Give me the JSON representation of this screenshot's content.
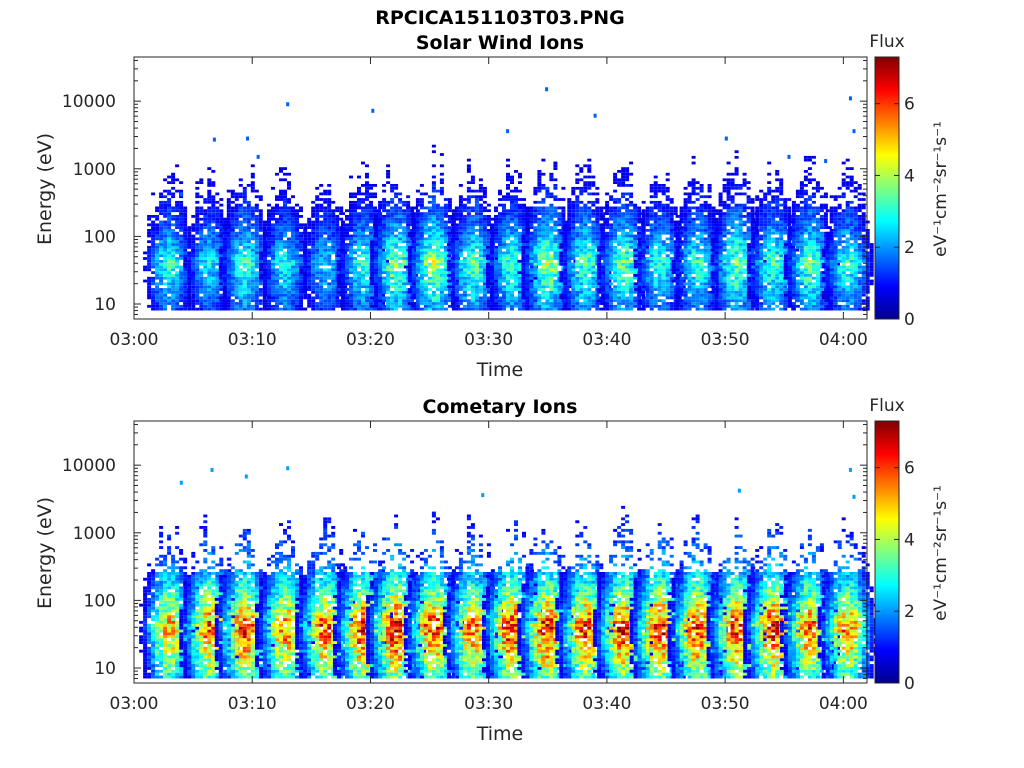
{
  "figure_title": "RPCICA151103T03.PNG",
  "colormap": [
    "#00008f",
    "#0000ff",
    "#007fff",
    "#00ffff",
    "#7fff7f",
    "#ffff00",
    "#ff7f00",
    "#ff0000",
    "#7f0000"
  ],
  "chart_data": [
    {
      "type": "heatmap",
      "title": "Solar Wind Ions",
      "xlabel": "Time",
      "ylabel": "Energy (eV)",
      "xlim": [
        "03:00",
        "04:02"
      ],
      "xticks": [
        "03:00",
        "03:10",
        "03:20",
        "03:30",
        "03:40",
        "03:50",
        "04:00"
      ],
      "yscale": "log",
      "ylim": [
        6,
        45000
      ],
      "yticks": [
        "10",
        "100",
        "1000",
        "10000"
      ],
      "grid": false,
      "colorbar": {
        "label": "Flux",
        "unit_label": "eV⁻¹cm⁻²sr⁻¹s⁻¹",
        "range": [
          0,
          7.3
        ],
        "ticks": [
          "0",
          "2",
          "4",
          "6"
        ]
      },
      "burst_times_min": [
        2.8,
        6.2,
        9.2,
        12.6,
        16.0,
        19.2,
        22.0,
        25.2,
        28.5,
        31.8,
        34.8,
        38.0,
        41.2,
        44.3,
        47.5,
        50.8,
        53.9,
        57.0,
        60.2
      ],
      "burst_peak_flux": [
        3.2,
        2.8,
        3.4,
        3.0,
        2.6,
        3.3,
        3.9,
        4.2,
        3.6,
        3.4,
        4.2,
        3.6,
        3.8,
        3.2,
        3.3,
        3.8,
        3.5,
        3.7,
        3.3
      ],
      "energy_range_eV": [
        8,
        2500
      ],
      "peak_energy_eV": 40,
      "scattered_points": [
        {
          "t_min": 4.0,
          "energy_eV": 420
        },
        {
          "t_min": 6.8,
          "energy_eV": 2700
        },
        {
          "t_min": 9.6,
          "energy_eV": 2800
        },
        {
          "t_min": 10.5,
          "energy_eV": 1500
        },
        {
          "t_min": 13.0,
          "energy_eV": 9000
        },
        {
          "t_min": 20.2,
          "energy_eV": 7200
        },
        {
          "t_min": 31.6,
          "energy_eV": 3600
        },
        {
          "t_min": 34.9,
          "energy_eV": 15000
        },
        {
          "t_min": 39.0,
          "energy_eV": 6100
        },
        {
          "t_min": 50.1,
          "energy_eV": 2800
        },
        {
          "t_min": 55.4,
          "energy_eV": 1500
        },
        {
          "t_min": 58.5,
          "energy_eV": 1300
        },
        {
          "t_min": 60.6,
          "energy_eV": 11000
        },
        {
          "t_min": 60.9,
          "energy_eV": 3600
        }
      ]
    },
    {
      "type": "heatmap",
      "title": "Cometary Ions",
      "xlabel": "Time",
      "ylabel": "Energy (eV)",
      "xlim": [
        "03:00",
        "04:02"
      ],
      "xticks": [
        "03:00",
        "03:10",
        "03:20",
        "03:30",
        "03:40",
        "03:50",
        "04:00"
      ],
      "yscale": "log",
      "ylim": [
        6,
        45000
      ],
      "yticks": [
        "10",
        "100",
        "1000",
        "10000"
      ],
      "grid": false,
      "colorbar": {
        "label": "Flux",
        "unit_label": "eV⁻¹cm⁻²sr⁻¹s⁻¹",
        "range": [
          0,
          7.3
        ],
        "ticks": [
          "0",
          "2",
          "4",
          "6"
        ]
      },
      "burst_times_min": [
        2.8,
        6.2,
        9.2,
        12.6,
        16.0,
        19.2,
        22.0,
        25.2,
        28.5,
        31.8,
        34.8,
        38.0,
        41.2,
        44.3,
        47.5,
        50.8,
        53.9,
        57.0,
        60.2
      ],
      "burst_peak_flux": [
        5.6,
        6.2,
        6.6,
        6.0,
        6.4,
        6.8,
        7.0,
        6.6,
        6.2,
        6.9,
        6.8,
        6.5,
        6.8,
        6.9,
        6.6,
        6.7,
        6.8,
        6.2,
        6.0
      ],
      "energy_range_eV": [
        7,
        2500
      ],
      "peak_energy_eV": 40,
      "scattered_points": [
        {
          "t_min": 4.0,
          "energy_eV": 5500
        },
        {
          "t_min": 6.6,
          "energy_eV": 8500
        },
        {
          "t_min": 9.5,
          "energy_eV": 6800
        },
        {
          "t_min": 13.0,
          "energy_eV": 9000
        },
        {
          "t_min": 29.5,
          "energy_eV": 3600
        },
        {
          "t_min": 51.2,
          "energy_eV": 4200
        },
        {
          "t_min": 60.6,
          "energy_eV": 8500
        },
        {
          "t_min": 60.9,
          "energy_eV": 3400
        }
      ]
    }
  ]
}
